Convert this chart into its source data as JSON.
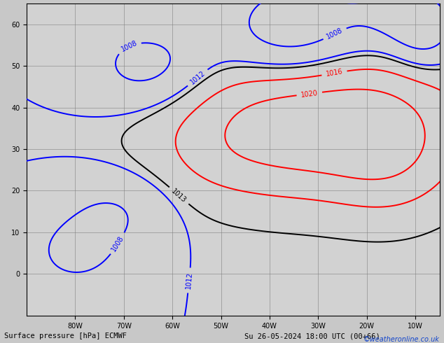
{
  "title_left": "Surface pressure [hPa] ECMWF",
  "title_right": "Su 26-05-2024 18:00 UTC (00+66)",
  "watermark": "©weatheronline.co.uk",
  "ocean_color": "#d2d2d2",
  "land_color": "#a8d4a0",
  "land_edge_color": "#000000",
  "fig_width": 6.34,
  "fig_height": 4.9,
  "dpi": 100,
  "xlim": [
    -90,
    -5
  ],
  "ylim": [
    -10,
    65
  ],
  "grid_lons": [
    -80,
    -70,
    -60,
    -50,
    -40,
    -30,
    -20,
    -10
  ],
  "grid_lats": [
    0,
    10,
    20,
    30,
    40,
    50,
    60
  ],
  "label_fontsize": 7,
  "axis_label_fontsize": 7,
  "title_fontsize": 7.5,
  "watermark_fontsize": 7,
  "watermark_color": "#1144cc",
  "lw_black": 1.4,
  "lw_red": 1.4,
  "lw_blue": 1.4,
  "clabel_fontsize": 7
}
